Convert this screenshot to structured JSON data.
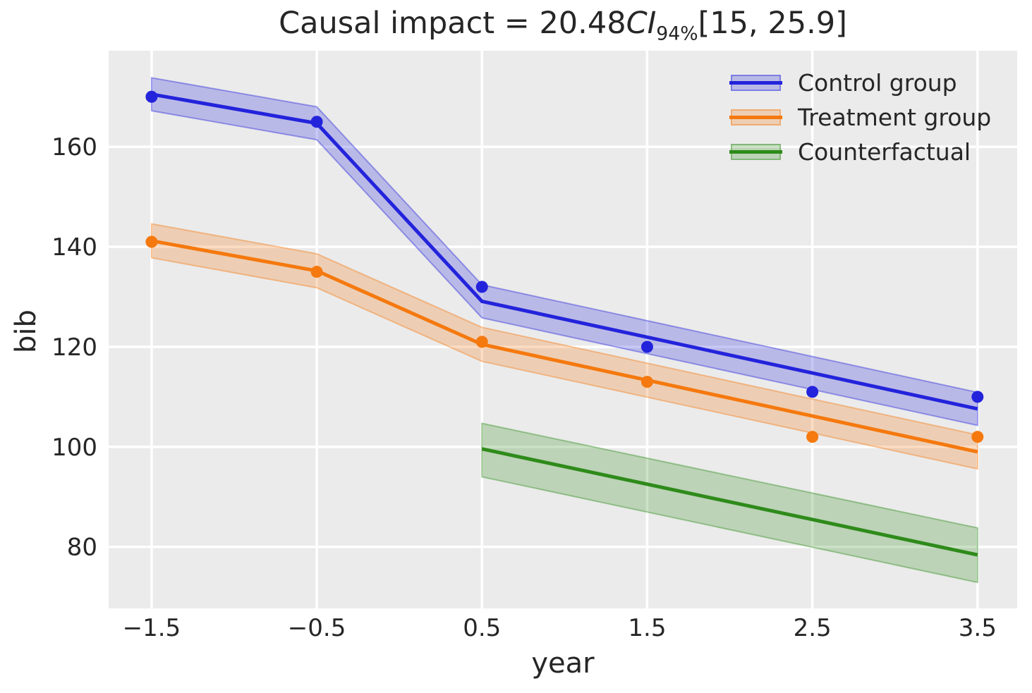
{
  "figure": {
    "background": "#ffffff",
    "plot_background": "#ebebeb",
    "grid_color": "#ffffff",
    "text_color": "#262626"
  },
  "title": {
    "prefix": "Causal impact = 20.48",
    "ci": "CI",
    "ci_subscript": "94%",
    "interval": "[15, 25.9]"
  },
  "axes": {
    "xlabel": "year",
    "ylabel": "bib",
    "xlim": [
      -1.76,
      3.74
    ],
    "ylim": [
      67.7,
      179.2
    ],
    "xtick_labels": [
      "−1.5",
      "−0.5",
      "0.5",
      "1.5",
      "2.5",
      "3.5"
    ],
    "xtick_values": [
      -1.5,
      -0.5,
      0.5,
      1.5,
      2.5,
      3.5
    ],
    "ytick_labels": [
      "80",
      "100",
      "120",
      "140",
      "160"
    ],
    "ytick_values": [
      80,
      100,
      120,
      140,
      160
    ],
    "grid": true
  },
  "chart_data": {
    "type": "line",
    "title": "Causal impact = 20.48 CI 94% [15, 25.9]",
    "xlabel": "year",
    "ylabel": "bib",
    "legend_position": "upper right",
    "series": [
      {
        "name": "Control group",
        "color": "#2323dc",
        "band_alpha": 0.25,
        "line_x": [
          -1.5,
          -0.5,
          0.5,
          3.5
        ],
        "line_y": [
          170.5,
          164.7,
          129.1,
          107.6
        ],
        "band_x": [
          -1.5,
          -0.5,
          0.5,
          3.5
        ],
        "band_upper": [
          173.8,
          168.0,
          132.4,
          110.9
        ],
        "band_lower": [
          167.2,
          161.4,
          125.8,
          104.3
        ],
        "scatter_x": [
          -1.5,
          -0.5,
          0.5,
          1.5,
          2.5,
          3.5
        ],
        "scatter_y": [
          170,
          165,
          132,
          120,
          111,
          110
        ]
      },
      {
        "name": "Treatment group",
        "color": "#f5790e",
        "band_alpha": 0.25,
        "line_x": [
          -1.5,
          -0.5,
          0.5,
          3.5
        ],
        "line_y": [
          141.2,
          135.2,
          120.5,
          99.0
        ],
        "band_x": [
          -1.5,
          -0.5,
          0.5,
          3.5
        ],
        "band_upper": [
          144.6,
          138.6,
          123.9,
          102.4
        ],
        "band_lower": [
          137.8,
          131.8,
          117.1,
          95.6
        ],
        "scatter_x": [
          -1.5,
          -0.5,
          0.5,
          1.5,
          2.5,
          3.5
        ],
        "scatter_y": [
          141,
          135,
          121,
          113,
          102,
          102
        ]
      },
      {
        "name": "Counterfactual",
        "color": "#2e8b1a",
        "band_alpha": 0.25,
        "line_x": [
          0.5,
          3.5
        ],
        "line_y": [
          99.6,
          78.4
        ],
        "band_x": [
          0.5,
          3.5
        ],
        "band_upper": [
          104.7,
          83.8
        ],
        "band_lower": [
          94.0,
          72.9
        ],
        "scatter_x": [],
        "scatter_y": []
      }
    ]
  }
}
